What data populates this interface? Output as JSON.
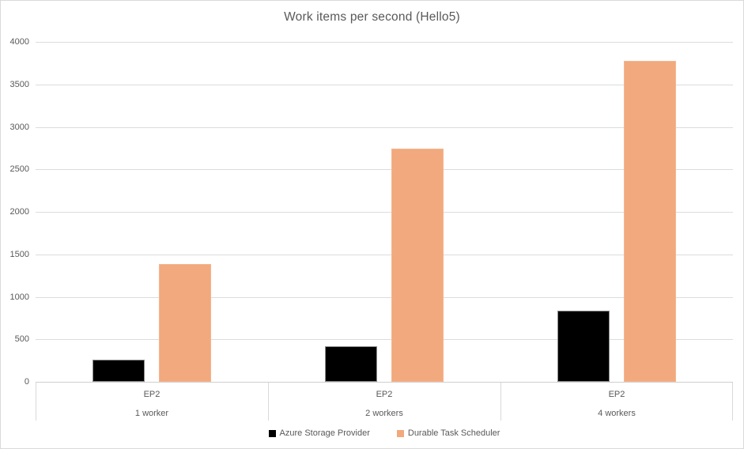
{
  "chart_data": {
    "type": "bar",
    "title": "Work items per second (Hello5)",
    "categories": [
      {
        "group": "EP2",
        "sub": "1 worker"
      },
      {
        "group": "EP2",
        "sub": "2 workers"
      },
      {
        "group": "EP2",
        "sub": "4 workers"
      }
    ],
    "series": [
      {
        "name": "Azure Storage Provider",
        "color": "#000000",
        "values": [
          260,
          420,
          840
        ]
      },
      {
        "name": "Durable Task Scheduler",
        "color": "#f2a97e",
        "values": [
          1390,
          2740,
          3780
        ]
      }
    ],
    "xlabel": "",
    "ylabel": "",
    "ylim": [
      0,
      4000
    ],
    "yticks": [
      0,
      500,
      1000,
      1500,
      2000,
      2500,
      3000,
      3500,
      4000
    ],
    "grid": true,
    "legend_position": "bottom"
  },
  "colors": {
    "title_text": "#595959",
    "axis_text": "#595959",
    "gridline": "#dcdcdc",
    "border": "#d9d9d9",
    "background": "#ffffff"
  }
}
